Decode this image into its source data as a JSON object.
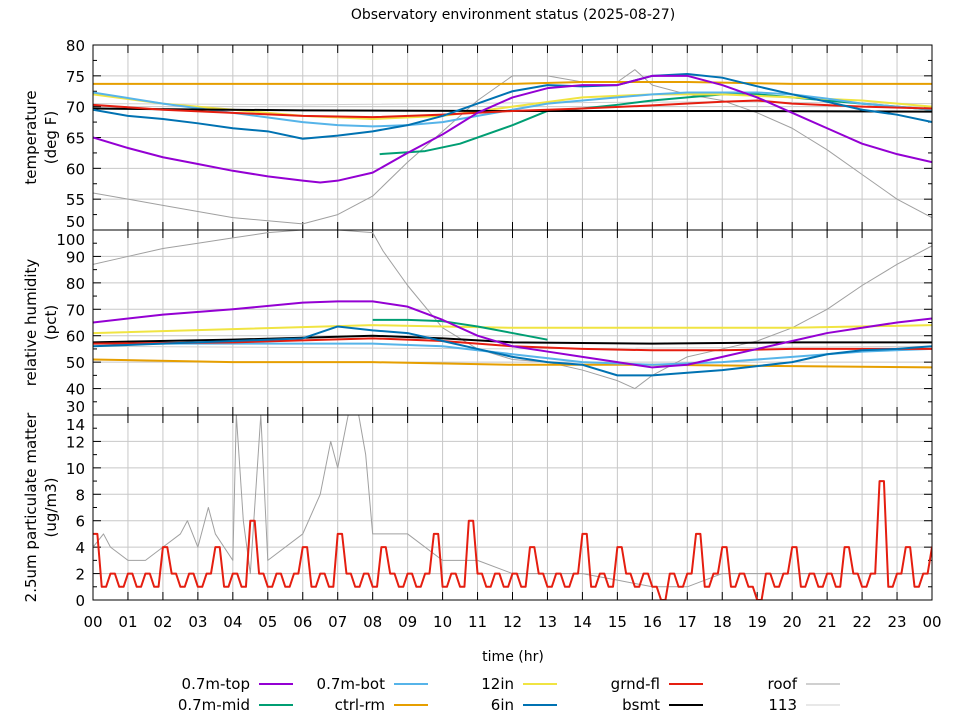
{
  "chart_data": {
    "type": "line",
    "title": "Observatory environment status (2025-08-27)",
    "xlabel": "time (hr)",
    "xlim": [
      0,
      24
    ],
    "x_tick_labels": [
      "00",
      "01",
      "02",
      "03",
      "04",
      "05",
      "06",
      "07",
      "08",
      "09",
      "10",
      "11",
      "12",
      "13",
      "14",
      "15",
      "16",
      "17",
      "18",
      "19",
      "20",
      "21",
      "22",
      "23",
      "00"
    ],
    "grid": true,
    "legend_placement": "bottom",
    "legend": [
      {
        "name": "0.7m-top",
        "color": "#9400d3"
      },
      {
        "name": "0.7m-mid",
        "color": "#009e73"
      },
      {
        "name": "0.7m-bot",
        "color": "#56b4e9"
      },
      {
        "name": "ctrl-rm",
        "color": "#e69f00"
      },
      {
        "name": "12in",
        "color": "#f0e442"
      },
      {
        "name": "6in",
        "color": "#0072b2"
      },
      {
        "name": "grnd-fl",
        "color": "#e51e10"
      },
      {
        "name": "bsmt",
        "color": "#000000"
      },
      {
        "name": "roof",
        "color": "#a0a0a0"
      },
      {
        "name": "113",
        "color": "#d0d0d0"
      }
    ],
    "panels": [
      {
        "ylabel": [
          "temperature",
          "(deg F)"
        ],
        "ylim": [
          50,
          80
        ],
        "yticks": [
          50,
          55,
          60,
          65,
          70,
          75,
          80
        ],
        "series": [
          {
            "name": "113",
            "x": [
              0,
              6,
              12,
              18,
              24
            ],
            "y": [
              70.5,
              70.3,
              70.6,
              70.8,
              70.5
            ]
          },
          {
            "name": "roof",
            "x": [
              0,
              1,
              2,
              3,
              4,
              5,
              6,
              7,
              8,
              9,
              10,
              11,
              12,
              13,
              14,
              15,
              15.5,
              16,
              17,
              18,
              19,
              20,
              21,
              22,
              23,
              24
            ],
            "y": [
              56,
              55,
              54,
              53,
              52,
              51.5,
              51,
              52.5,
              55.5,
              61,
              66,
              71,
              75,
              75,
              74,
              74,
              76,
              73.5,
              72,
              71,
              69,
              66.5,
              63,
              59,
              55,
              52
            ]
          },
          {
            "name": "ctrl-rm",
            "x": [
              0,
              6,
              12,
              14,
              17,
              20,
              24
            ],
            "y": [
              73.7,
              73.7,
              73.7,
              74,
              74,
              73.7,
              73.7
            ]
          },
          {
            "name": "0.7m-mid",
            "x": [
              8.2,
              9.5,
              10.5,
              12,
              13,
              14,
              15,
              16,
              17,
              18,
              19,
              20,
              21,
              22,
              23,
              24
            ],
            "y": [
              62.3,
              62.8,
              64,
              67,
              69.3,
              69.7,
              70.3,
              71,
              71.5,
              72,
              72,
              71.5,
              71,
              70.5,
              70,
              69.5
            ]
          },
          {
            "name": "12in",
            "x": [
              0,
              2,
              4,
              6,
              8,
              10,
              12,
              14,
              16,
              18,
              20,
              22,
              24
            ],
            "y": [
              72,
              70.5,
              69.5,
              68.5,
              68,
              68.5,
              70,
              71.5,
              72,
              72,
              71.5,
              71,
              70
            ]
          },
          {
            "name": "0.7m-bot",
            "x": [
              0,
              2,
              4,
              6,
              7,
              8,
              9,
              10,
              11,
              12,
              13,
              14,
              15,
              16,
              17,
              18,
              19,
              20,
              21,
              22,
              23,
              24
            ],
            "y": [
              72.3,
              70.5,
              69,
              67.5,
              67,
              66.8,
              67,
              67.5,
              68.5,
              69.5,
              70.5,
              71,
              71.5,
              72,
              72.3,
              72.3,
              72.3,
              72,
              71.3,
              70.5,
              70,
              69.5
            ]
          },
          {
            "name": "bsmt",
            "x": [
              0,
              6,
              12,
              18,
              24
            ],
            "y": [
              69.7,
              69.4,
              69.3,
              69.3,
              69.2
            ]
          },
          {
            "name": "grnd-fl",
            "x": [
              0,
              2,
              4,
              6,
              8,
              10,
              12,
              14,
              16,
              18,
              19,
              20,
              22,
              24
            ],
            "y": [
              70.3,
              69.5,
              69,
              68.5,
              68.3,
              68.7,
              69.3,
              69.7,
              70.2,
              70.8,
              71,
              70.5,
              70,
              69.7
            ]
          },
          {
            "name": "6in",
            "x": [
              0,
              1,
              2,
              3,
              4,
              5,
              6,
              7,
              8,
              9,
              10,
              11,
              12,
              13,
              14,
              15,
              16,
              17,
              18,
              19,
              20,
              21,
              22,
              23,
              24
            ],
            "y": [
              69.5,
              68.5,
              68,
              67.3,
              66.5,
              66,
              64.8,
              65.3,
              66,
              67,
              68.5,
              70.5,
              72.5,
              73.5,
              73.3,
              73.5,
              75,
              75.3,
              74.7,
              73.3,
              72,
              70.8,
              69.5,
              68.7,
              67.5
            ]
          },
          {
            "name": "0.7m-top",
            "x": [
              0,
              1,
              2,
              3,
              4,
              5,
              6,
              6.5,
              7,
              8,
              9,
              10,
              11,
              12,
              13,
              14,
              15,
              16,
              17,
              18,
              19,
              20,
              21,
              22,
              23,
              24
            ],
            "y": [
              65,
              63.3,
              61.8,
              60.7,
              59.6,
              58.7,
              58,
              57.7,
              58,
              59.3,
              62.5,
              65.5,
              69,
              71.5,
              73,
              73.5,
              73.5,
              75,
              75,
              73.5,
              71.5,
              69,
              66.5,
              64,
              62.3,
              61
            ]
          }
        ]
      },
      {
        "ylabel": [
          "relative humidity",
          "(pct)"
        ],
        "ylim": [
          30,
          100
        ],
        "yticks": [
          30,
          40,
          50,
          60,
          70,
          80,
          90,
          100
        ],
        "series": [
          {
            "name": "113",
            "x": [
              0,
              12,
              24
            ],
            "y": [
              56,
              55,
              56
            ]
          },
          {
            "name": "roof",
            "x": [
              0,
              1,
              2,
              3,
              4,
              5,
              6,
              7,
              8,
              8.3,
              9,
              10,
              11,
              12,
              13,
              14,
              15,
              15.5,
              16,
              17,
              18,
              19,
              20,
              21,
              22,
              23,
              24
            ],
            "y": [
              87,
              90,
              93,
              95,
              97,
              99,
              100,
              100,
              99,
              92,
              79,
              63,
              55,
              51,
              50,
              47,
              43,
              40,
              45,
              52,
              55,
              58,
              63,
              70,
              79,
              87,
              94
            ]
          },
          {
            "name": "ctrl-rm",
            "x": [
              0,
              4,
              8,
              12,
              16,
              20,
              24
            ],
            "y": [
              51,
              50,
              50,
              49,
              49,
              48.5,
              48
            ]
          },
          {
            "name": "12in",
            "x": [
              0,
              4,
              8,
              10,
              12,
              16,
              20,
              24
            ],
            "y": [
              61,
              62.5,
              64,
              63.5,
              63,
              63,
              63,
              64
            ]
          },
          {
            "name": "0.7m-mid",
            "x": [
              8,
              9,
              10,
              11,
              12,
              13
            ],
            "y": [
              66,
              66,
              65.5,
              63.5,
              61,
              58.5
            ]
          },
          {
            "name": "0.7m-bot",
            "x": [
              0,
              4,
              8,
              10,
              12,
              14,
              16,
              18,
              20,
              22,
              24
            ],
            "y": [
              57,
              57,
              57,
              56,
              53,
              50,
              49,
              50,
              52,
              54,
              55
            ]
          },
          {
            "name": "bsmt",
            "x": [
              0,
              4,
              8,
              10,
              12,
              16,
              20,
              24
            ],
            "y": [
              57.5,
              58.5,
              60,
              59,
              57.5,
              57,
              57.5,
              57.5
            ]
          },
          {
            "name": "grnd-fl",
            "x": [
              0,
              4,
              8,
              10,
              12,
              14,
              16,
              18,
              20,
              24
            ],
            "y": [
              57,
              57.5,
              59,
              58,
              56,
              55,
              54.5,
              54.5,
              55,
              55
            ]
          },
          {
            "name": "6in",
            "x": [
              0,
              2,
              4,
              6,
              7,
              8,
              9,
              10,
              11,
              12,
              13,
              14,
              15,
              16,
              17,
              18,
              19,
              20,
              21,
              22,
              23,
              24
            ],
            "y": [
              56,
              57,
              58,
              59,
              63.5,
              62,
              61,
              58,
              55,
              52,
              50,
              49,
              45,
              45,
              46,
              47,
              48.5,
              50,
              53,
              54.5,
              55,
              56
            ]
          },
          {
            "name": "0.7m-top",
            "x": [
              0,
              2,
              4,
              6,
              7,
              8,
              9,
              10,
              11,
              12,
              13,
              14,
              15,
              16,
              17,
              18,
              19,
              20,
              21,
              22,
              23,
              24
            ],
            "y": [
              65,
              68,
              70,
              72.5,
              73,
              73,
              71,
              66,
              60,
              56,
              54,
              52,
              50,
              48,
              49,
              52,
              55,
              58,
              61,
              63,
              65,
              66.5
            ]
          }
        ]
      },
      {
        "ylabel": [
          "2.5um particulate matter",
          "(ug/m3)"
        ],
        "ylim": [
          0,
          14
        ],
        "yticks": [
          0,
          2,
          4,
          6,
          8,
          10,
          12,
          14
        ],
        "series": [
          {
            "name": "roof",
            "x": [
              0,
              0.3,
              0.5,
              1,
              1.5,
              2,
              2.5,
              2.7,
              3,
              3.3,
              3.5,
              4,
              4.1,
              4.3,
              4.5,
              4.8,
              5,
              6,
              6.5,
              6.8,
              7,
              7.3,
              7.6,
              7.8,
              8,
              9,
              10,
              11,
              12,
              13,
              14,
              15,
              16,
              17,
              18,
              19,
              20,
              21,
              22,
              23,
              24
            ],
            "y": [
              4,
              5,
              4,
              3,
              3,
              4,
              5,
              6,
              4,
              7,
              5,
              3,
              14,
              6,
              2,
              14,
              3,
              5,
              8,
              12,
              10,
              14,
              14,
              11,
              5,
              5,
              3,
              3,
              2,
              2,
              2,
              1.5,
              1,
              1,
              2,
              2,
              2,
              2,
              2,
              2,
              2
            ]
          },
          {
            "name": "grnd-fl",
            "step": 0.25,
            "y": [
              5,
              1,
              2,
              1,
              2,
              1,
              2,
              1,
              4,
              2,
              1,
              2,
              1,
              2,
              4,
              1,
              2,
              1,
              6,
              2,
              1,
              2,
              1,
              2,
              4,
              1,
              2,
              1,
              5,
              2,
              1,
              2,
              1,
              4,
              2,
              1,
              2,
              1,
              2,
              5,
              1,
              2,
              1,
              6,
              2,
              1,
              2,
              1,
              2,
              1,
              4,
              2,
              1,
              2,
              1,
              2,
              5,
              1,
              2,
              1,
              4,
              2,
              1,
              2,
              1,
              0,
              2,
              1,
              2,
              5,
              1,
              2,
              4,
              1,
              2,
              1,
              0,
              2,
              1,
              2,
              4,
              1,
              2,
              1,
              2,
              1,
              4,
              2,
              1,
              2,
              9,
              1,
              2,
              4,
              1,
              2,
              4
            ]
          }
        ]
      }
    ]
  }
}
